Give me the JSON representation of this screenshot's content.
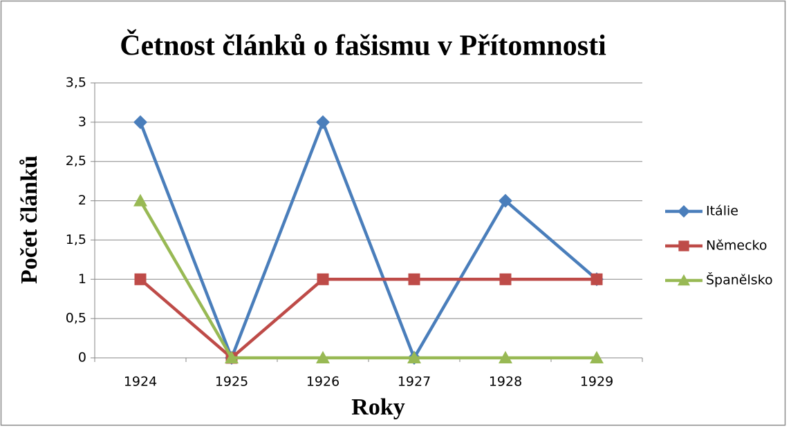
{
  "chart_data": {
    "type": "line",
    "title": "Četnost článků o fašismu v Přítomnosti",
    "x_label": "Roky",
    "y_label": "Počet článků",
    "categories": [
      "1924",
      "1925",
      "1926",
      "1927",
      "1928",
      "1929"
    ],
    "series": [
      {
        "name": "Itálie",
        "color": "#4a7ebb",
        "marker": "diamond",
        "values": [
          3,
          0,
          3,
          0,
          2,
          1
        ]
      },
      {
        "name": "Německo",
        "color": "#be4b48",
        "marker": "square",
        "values": [
          1,
          0,
          1,
          1,
          1,
          1
        ]
      },
      {
        "name": "Španělsko",
        "color": "#98b954",
        "marker": "triangle",
        "values": [
          2,
          0,
          0,
          0,
          0,
          0
        ]
      }
    ],
    "ylim": [
      0,
      3.5
    ],
    "yticks": [
      0,
      {
        "value": 0.5,
        "label": "0,5"
      },
      1,
      {
        "value": 1.5,
        "label": "1,5"
      },
      2,
      {
        "value": 2.5,
        "label": "2,5"
      },
      3,
      {
        "value": 3.5,
        "label": "3,5"
      }
    ],
    "grid": true,
    "legend": "right"
  }
}
